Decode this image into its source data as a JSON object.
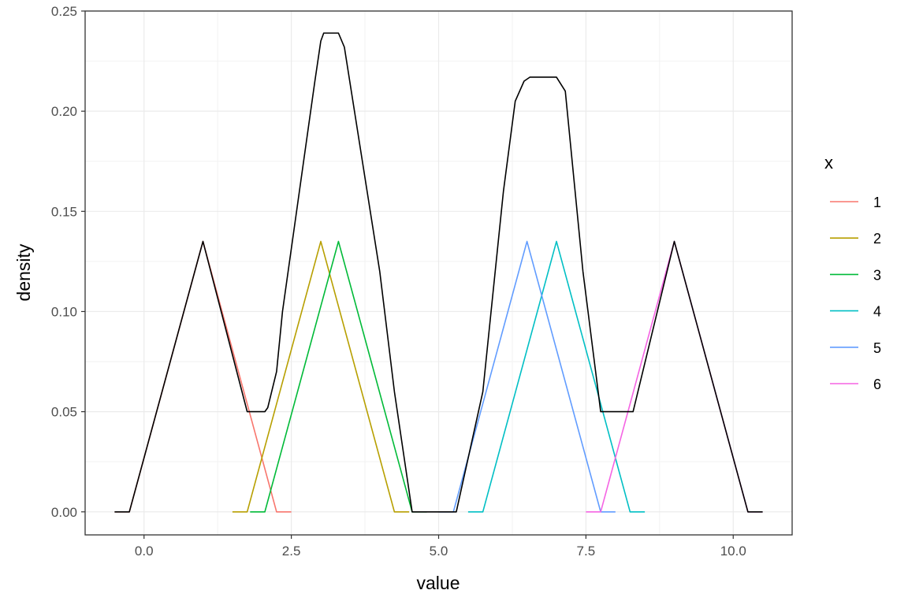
{
  "chart_data": {
    "type": "line",
    "title": "",
    "xlabel": "value",
    "ylabel": "density",
    "xlim": [
      -1.0,
      11.0
    ],
    "ylim": [
      -0.0115,
      0.25
    ],
    "x_ticks": [
      0.0,
      2.5,
      5.0,
      7.5,
      10.0
    ],
    "x_tick_labels": [
      "0.0",
      "2.5",
      "5.0",
      "7.5",
      "10.0"
    ],
    "y_ticks": [
      0.0,
      0.05,
      0.1,
      0.15,
      0.2,
      0.25
    ],
    "y_tick_labels": [
      "0.00",
      "0.05",
      "0.10",
      "0.15",
      "0.20",
      "0.25"
    ],
    "grid": true,
    "legend": {
      "title": "x",
      "placement": "right",
      "entries": [
        "1",
        "2",
        "3",
        "4",
        "5",
        "6"
      ]
    },
    "series": [
      {
        "name": "1",
        "color": "#F8766D",
        "x": [
          -0.5,
          -0.25,
          1.0,
          2.25,
          2.5
        ],
        "y": [
          0.0,
          0.0,
          0.135,
          0.0,
          0.0
        ]
      },
      {
        "name": "2",
        "color": "#B79F00",
        "x": [
          1.5,
          1.75,
          3.0,
          4.25,
          4.5
        ],
        "y": [
          0.0,
          0.0,
          0.135,
          0.0,
          0.0
        ]
      },
      {
        "name": "3",
        "color": "#00BA38",
        "x": [
          1.8,
          2.05,
          3.3,
          4.55,
          4.8
        ],
        "y": [
          0.0,
          0.0,
          0.135,
          0.0,
          0.0
        ]
      },
      {
        "name": "4",
        "color": "#00BFC4",
        "x": [
          5.5,
          5.75,
          7.0,
          8.25,
          8.5
        ],
        "y": [
          0.0,
          0.0,
          0.135,
          0.0,
          0.0
        ]
      },
      {
        "name": "5",
        "color": "#619CFF",
        "x": [
          5.0,
          5.25,
          6.5,
          7.75,
          8.0
        ],
        "y": [
          0.0,
          0.0,
          0.135,
          0.0,
          0.0
        ]
      },
      {
        "name": "6",
        "color": "#F564E3",
        "x": [
          7.5,
          7.75,
          9.0,
          10.25,
          10.5
        ],
        "y": [
          0.0,
          0.0,
          0.135,
          0.0,
          0.0
        ]
      }
    ],
    "envelope": {
      "color": "#000000",
      "x": [
        -0.5,
        -0.25,
        1.0,
        1.75,
        1.85,
        2.05,
        2.1,
        2.25,
        2.35,
        2.9,
        3.0,
        3.05,
        3.3,
        3.4,
        4.0,
        4.25,
        4.55,
        4.8,
        5.0,
        5.25,
        5.3,
        5.75,
        6.1,
        6.3,
        6.45,
        6.55,
        7.0,
        7.15,
        7.45,
        7.75,
        7.8,
        7.95,
        8.25,
        8.3,
        9.0,
        10.25,
        10.5
      ],
      "y": [
        0.0,
        0.0,
        0.135,
        0.05,
        0.05,
        0.05,
        0.052,
        0.07,
        0.1,
        0.215,
        0.235,
        0.239,
        0.239,
        0.232,
        0.12,
        0.06,
        0.0,
        0.0,
        0.0,
        0.0,
        0.0,
        0.06,
        0.16,
        0.205,
        0.215,
        0.217,
        0.217,
        0.21,
        0.12,
        0.05,
        0.05,
        0.05,
        0.05,
        0.05,
        0.135,
        0.0,
        0.0
      ]
    }
  }
}
